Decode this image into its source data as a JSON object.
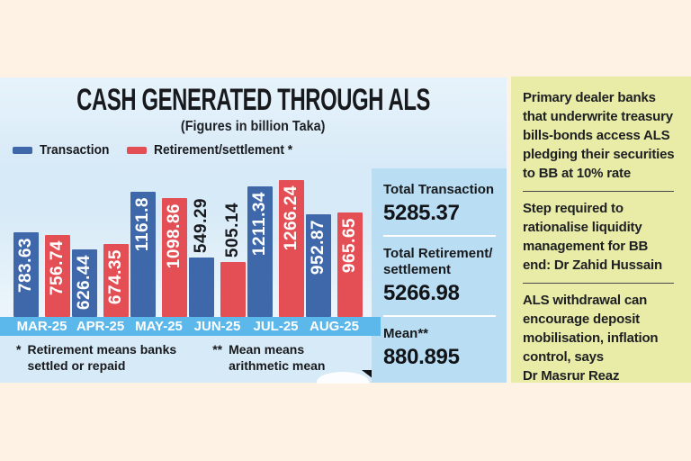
{
  "header": {
    "title": "CASH GENERATED THROUGH ALS",
    "subtitle": "(Figures in billion Taka)"
  },
  "legend": {
    "items": [
      {
        "label": "Transaction",
        "color": "#3e68aa"
      },
      {
        "label": "Retirement/settlement *",
        "color": "#e34f55"
      }
    ]
  },
  "chart_data": {
    "type": "bar",
    "title": "CASH GENERATED THROUGH ALS",
    "subtitle": "(Figures in billion Taka)",
    "unit": "billion Taka",
    "categories": [
      "MAR-25",
      "APR-25",
      "MAY-25",
      "JUN-25",
      "JUL-25",
      "AUG-25"
    ],
    "series": [
      {
        "name": "Transaction",
        "color": "#3e68aa",
        "values": [
          783.63,
          626.44,
          1161.8,
          549.29,
          1211.34,
          952.87
        ]
      },
      {
        "name": "Retirement/settlement *",
        "color": "#e34f55",
        "values": [
          756.74,
          674.35,
          1098.86,
          505.14,
          1266.24,
          965.65
        ]
      }
    ],
    "outside_label_indices": [
      3
    ],
    "ylim": [
      0,
      1330
    ],
    "grid": false,
    "legend_position": "top-left",
    "category_strip_color": "#5cb7ea"
  },
  "footnotes": {
    "items": [
      {
        "marker": "*",
        "text": "Retirement means banks\nsettled or repaid"
      },
      {
        "marker": "**",
        "text": "Mean means\narithmetic mean"
      }
    ]
  },
  "stats": {
    "items": [
      {
        "label": "Total Transaction",
        "value": "5285.37"
      },
      {
        "label": "Total Retirement/\nsettlement",
        "value": "5266.98"
      },
      {
        "label": "Mean**",
        "value": "880.895"
      }
    ]
  },
  "notes": {
    "items": [
      {
        "pre": "Primary dealer banks\nthat underwrite treasury\nbills-bonds access ALS\npledging their securities\nto BB at ",
        "bold": "10%",
        "post": " rate"
      },
      {
        "pre": "Step required to\nrationalise liquidity\nmanagement for BB\nend: Dr Zahid Hussain",
        "bold": "",
        "post": ""
      },
      {
        "pre": "ALS withdrawal can\nencourage deposit\nmobilisation, inflation\ncontrol, says\nDr Masrur Reaz",
        "bold": "",
        "post": ""
      }
    ]
  },
  "colors": {
    "background": "#fdf2e3",
    "chart_panel": "#d7eaf7",
    "stats_panel": "#b9ddf3",
    "notes_panel": "#e9eca6",
    "category_strip": "#5cb7ea",
    "bar_blue": "#3e68aa",
    "bar_red": "#e34f55",
    "text_dark": "#17191c"
  }
}
